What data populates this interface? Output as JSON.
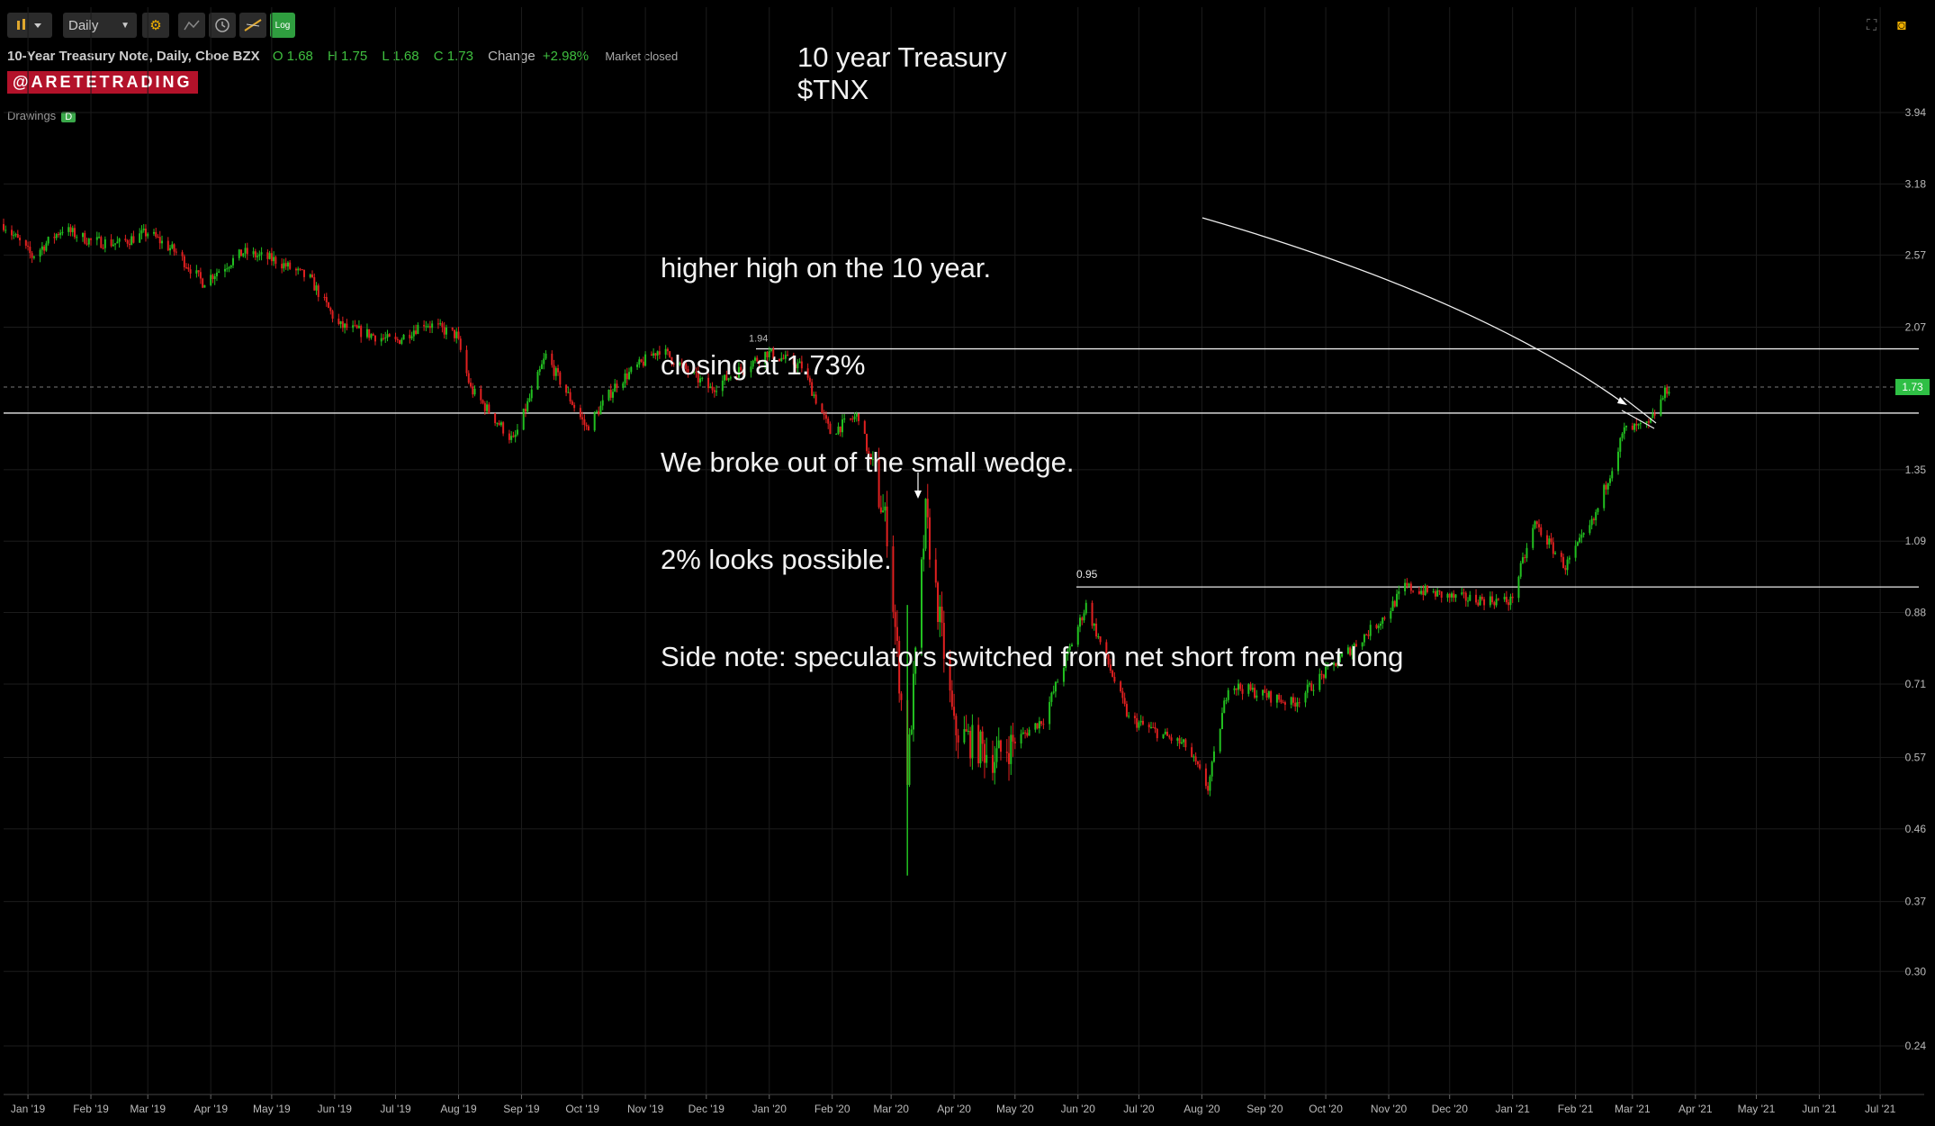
{
  "toolbar": {
    "interval": "Daily",
    "log_label": "Log"
  },
  "header": {
    "symbol_title": "10-Year Treasury Note, Daily, Cboe BZX",
    "open": "O 1.68",
    "high": "H 1.75",
    "low": "L 1.68",
    "close": "C 1.73",
    "change_label": "Change",
    "change_value": "+2.98%",
    "market_status": "Market closed",
    "brand": "@ARETETRADING",
    "drawings_label": "Drawings",
    "drawings_badge": "D"
  },
  "annotations": {
    "title_line1": "10 year Treasury",
    "title_line2": "$TNX",
    "note_lines": [
      "higher high on the 10 year.",
      "closing at 1.73%",
      "We broke out of the small wedge.",
      "2% looks possible.",
      "Side note: speculators switched from net short from net long"
    ],
    "level_095": "0.95",
    "level_194": "1.94",
    "price_tag": "1.73"
  },
  "colors": {
    "up": "#22c020",
    "down": "#e02020",
    "background": "#000000",
    "grid": "#1c1c1c",
    "price_tag": "#2fbf45"
  },
  "chart_data": {
    "type": "candlestick",
    "scale": "log",
    "ylim": [
      0.22,
      4.3
    ],
    "yticks": [
      3.94,
      3.18,
      2.57,
      2.07,
      1.35,
      1.09,
      0.88,
      0.71,
      0.57,
      0.46,
      0.37,
      0.3,
      0.24
    ],
    "xticks": [
      "Jan '19",
      "Feb '19",
      "Mar '19",
      "Apr '19",
      "May '19",
      "Jun '19",
      "Jul '19",
      "Aug '19",
      "Sep '19",
      "Oct '19",
      "Nov '19",
      "Dec '19",
      "Jan '20",
      "Feb '20",
      "Mar '20",
      "Apr '20",
      "May '20",
      "Jun '20",
      "Jul '20",
      "Aug '20",
      "Sep '20",
      "Oct '20",
      "Nov '20",
      "Dec '20",
      "Jan '21",
      "Feb '21",
      "Mar '21",
      "Apr '21",
      "May '21",
      "Jun '21",
      "Jul '21"
    ],
    "xtick_dates": [
      "2019-01-01",
      "2019-02-01",
      "2019-03-01",
      "2019-04-01",
      "2019-05-01",
      "2019-06-01",
      "2019-07-01",
      "2019-08-01",
      "2019-09-01",
      "2019-10-01",
      "2019-11-01",
      "2019-12-01",
      "2020-01-01",
      "2020-02-01",
      "2020-03-01",
      "2020-04-01",
      "2020-05-01",
      "2020-06-01",
      "2020-07-01",
      "2020-08-01",
      "2020-09-01",
      "2020-10-01",
      "2020-11-01",
      "2020-12-01",
      "2021-01-01",
      "2021-02-01",
      "2021-03-01",
      "2021-04-01",
      "2021-05-01",
      "2021-06-01",
      "2021-07-01"
    ],
    "path": [
      [
        "2018-12-20",
        2.82
      ],
      [
        "2019-01-03",
        2.56
      ],
      [
        "2019-01-18",
        2.78
      ],
      [
        "2019-02-01",
        2.68
      ],
      [
        "2019-02-15",
        2.66
      ],
      [
        "2019-03-01",
        2.75
      ],
      [
        "2019-03-15",
        2.59
      ],
      [
        "2019-03-28",
        2.37
      ],
      [
        "2019-04-17",
        2.59
      ],
      [
        "2019-05-03",
        2.53
      ],
      [
        "2019-05-20",
        2.39
      ],
      [
        "2019-06-03",
        2.08
      ],
      [
        "2019-06-20",
        2.02
      ],
      [
        "2019-07-01",
        1.98
      ],
      [
        "2019-07-15",
        2.1
      ],
      [
        "2019-07-31",
        2.02
      ],
      [
        "2019-08-07",
        1.72
      ],
      [
        "2019-08-28",
        1.47
      ],
      [
        "2019-09-13",
        1.9
      ],
      [
        "2019-10-03",
        1.53
      ],
      [
        "2019-10-18",
        1.75
      ],
      [
        "2019-11-08",
        1.94
      ],
      [
        "2019-12-03",
        1.72
      ],
      [
        "2019-12-31",
        1.92
      ],
      [
        "2020-01-17",
        1.84
      ],
      [
        "2020-01-31",
        1.51
      ],
      [
        "2020-02-14",
        1.59
      ],
      [
        "2020-02-28",
        1.13
      ],
      [
        "2020-03-09",
        0.54
      ],
      [
        "2020-03-18",
        1.18
      ],
      [
        "2020-04-01",
        0.62
      ],
      [
        "2020-04-21",
        0.57
      ],
      [
        "2020-05-15",
        0.64
      ],
      [
        "2020-06-05",
        0.9
      ],
      [
        "2020-06-26",
        0.64
      ],
      [
        "2020-07-24",
        0.59
      ],
      [
        "2020-08-04",
        0.52
      ],
      [
        "2020-08-14",
        0.71
      ],
      [
        "2020-09-15",
        0.67
      ],
      [
        "2020-10-09",
        0.77
      ],
      [
        "2020-10-30",
        0.87
      ],
      [
        "2020-11-09",
        0.95
      ],
      [
        "2020-12-03",
        0.92
      ],
      [
        "2020-12-31",
        0.91
      ],
      [
        "2021-01-12",
        1.15
      ],
      [
        "2021-01-27",
        1.01
      ],
      [
        "2021-02-10",
        1.16
      ],
      [
        "2021-02-25",
        1.52
      ],
      [
        "2021-03-09",
        1.54
      ],
      [
        "2021-03-18",
        1.72
      ],
      [
        "2021-03-19",
        1.73
      ]
    ],
    "horizontal_levels": [
      1.94,
      1.6,
      0.95
    ],
    "price_marker": 1.73
  }
}
